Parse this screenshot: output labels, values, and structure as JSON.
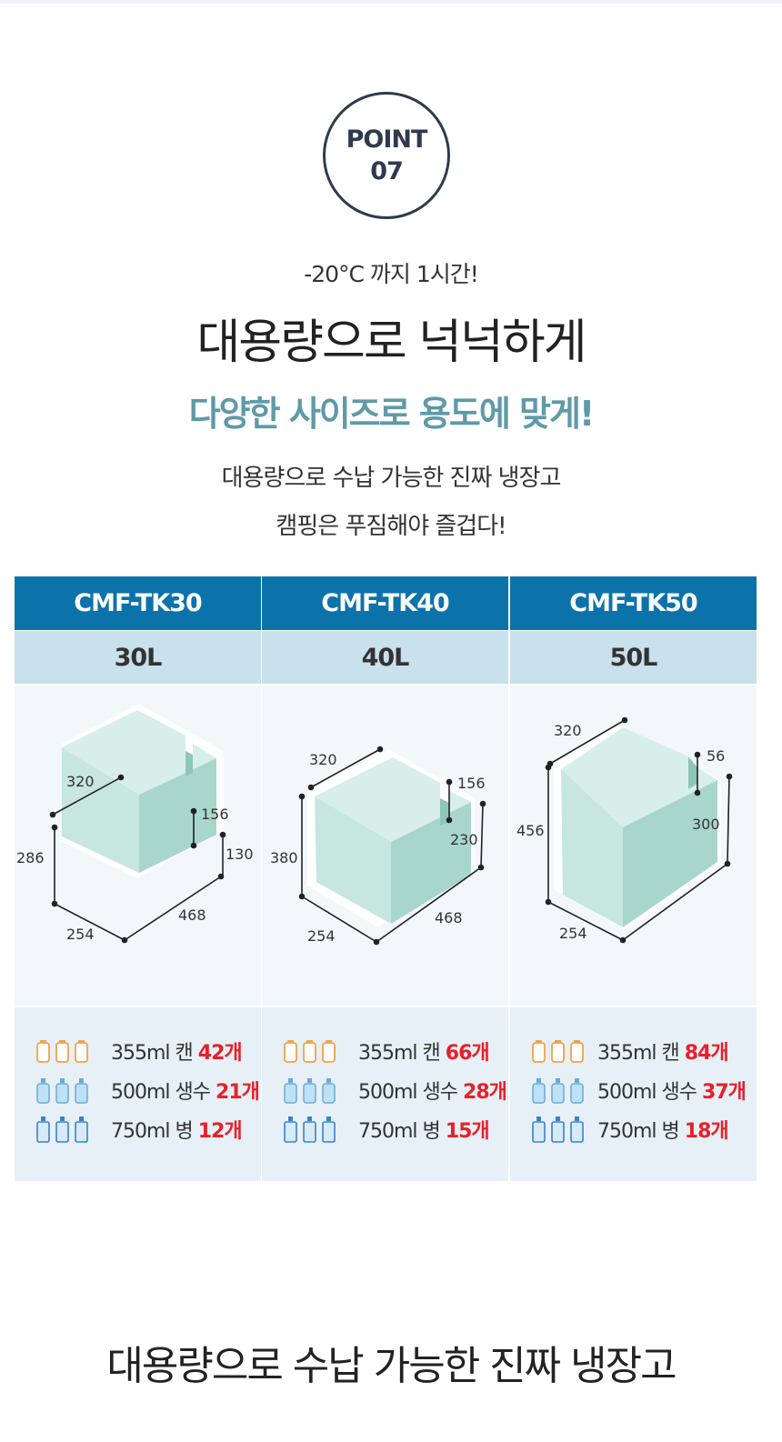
{
  "point": {
    "line1": "POINT",
    "line2": "07"
  },
  "sub_heading": "-20°C 까지 1시간!",
  "main_heading": "대용량으로 넉넉하게",
  "accent_heading": "다양한 사이즈로 용도에 맞게!",
  "description": {
    "line1": "대용량으로 수납 가능한 진짜 냉장고",
    "line2": "캠핑은 푸짐해야 즐겁다!"
  },
  "models": [
    {
      "name": "CMF-TK30",
      "capacity": "30L",
      "dims": {
        "top": "320",
        "notch": "156",
        "height": "286",
        "right": "130",
        "length": "468",
        "width": "254"
      },
      "counts": [
        {
          "label": "355ml 캔",
          "value": "42개"
        },
        {
          "label": "500ml 생수",
          "value": "21개"
        },
        {
          "label": "750ml 병",
          "value": "12개"
        }
      ]
    },
    {
      "name": "CMF-TK40",
      "capacity": "40L",
      "dims": {
        "top": "320",
        "notch": "156",
        "height": "380",
        "right": "230",
        "length": "468",
        "width": "254"
      },
      "counts": [
        {
          "label": "355ml 캔",
          "value": "66개"
        },
        {
          "label": "500ml 생수",
          "value": "28개"
        },
        {
          "label": "750ml 병",
          "value": "15개"
        }
      ]
    },
    {
      "name": "CMF-TK50",
      "capacity": "50L",
      "dims": {
        "top": "320",
        "notch": "56",
        "height": "456",
        "right": "300",
        "width": "254"
      },
      "counts": [
        {
          "label": "355ml 캔",
          "value": "84개"
        },
        {
          "label": "500ml 생수",
          "value": "37개"
        },
        {
          "label": "750ml 병",
          "value": "18개"
        }
      ]
    }
  ],
  "icons": {
    "can": "can-icon",
    "water": "water-bottle-icon",
    "bottle": "bottle-icon"
  },
  "colors": {
    "header": "#0b73aa",
    "capacity_row": "#c9e0ed",
    "accent": "#5e9aa7",
    "count_highlight": "#e8202a",
    "box_light": "#cfe9e1",
    "box_dark": "#a9d6cb"
  },
  "bottom_heading": "대용량으로 수납 가능한 진짜 냉장고"
}
